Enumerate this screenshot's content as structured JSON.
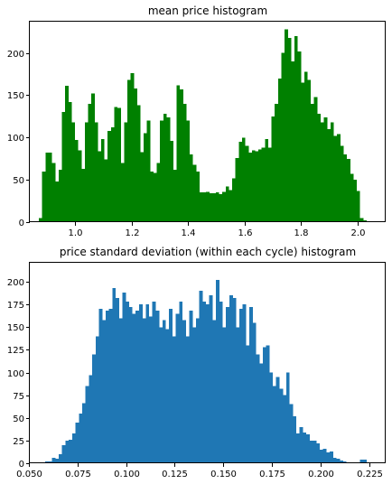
{
  "chart_data": [
    {
      "type": "bar",
      "title": "mean price histogram",
      "color": "#008000",
      "xlim": [
        0.84,
        2.1
      ],
      "ylim": [
        0,
        237
      ],
      "xticks": [
        1.0,
        1.2,
        1.4,
        1.6,
        1.8,
        2.0
      ],
      "xtick_labels": [
        "1.0",
        "1.2",
        "1.4",
        "1.6",
        "1.8",
        "2.0"
      ],
      "yticks": [
        0,
        50,
        100,
        150,
        200
      ],
      "ytick_labels": [
        "0",
        "50",
        "100",
        "150",
        "200"
      ],
      "bin_start": 0.872,
      "bin_width": 0.0116,
      "values": [
        5,
        60,
        82,
        82,
        70,
        48,
        62,
        130,
        161,
        142,
        118,
        97,
        85,
        63,
        118,
        140,
        152,
        118,
        84,
        98,
        74,
        108,
        112,
        136,
        135,
        70,
        118,
        168,
        176,
        158,
        138,
        83,
        105,
        120,
        60,
        58,
        70,
        120,
        128,
        124,
        96,
        62,
        162,
        157,
        140,
        120,
        80,
        68,
        60,
        35,
        35,
        36,
        34,
        34,
        35,
        33,
        36,
        42,
        38,
        52,
        76,
        95,
        100,
        90,
        82,
        85,
        84,
        86,
        88,
        98,
        88,
        125,
        140,
        170,
        200,
        228,
        218,
        190,
        220,
        202,
        165,
        178,
        168,
        140,
        148,
        128,
        118,
        124,
        110,
        118,
        102,
        104,
        90,
        80,
        75,
        57,
        50,
        37,
        5,
        2
      ]
    },
    {
      "type": "bar",
      "title": "price standard deviation (within each cycle) histogram",
      "color": "#1f77b4",
      "xlim": [
        0.0505,
        0.2335
      ],
      "ylim": [
        0,
        221
      ],
      "xticks": [
        0.05,
        0.075,
        0.1,
        0.125,
        0.15,
        0.175,
        0.2,
        0.225
      ],
      "xtick_labels": [
        "0.050",
        "0.075",
        "0.100",
        "0.125",
        "0.150",
        "0.175",
        "0.200",
        "0.225"
      ],
      "yticks": [
        0,
        25,
        50,
        75,
        100,
        125,
        150,
        175,
        200
      ],
      "ytick_labels": [
        "0",
        "25",
        "50",
        "75",
        "100",
        "125",
        "150",
        "175",
        "200"
      ],
      "bin_start": 0.0585,
      "bin_width": 0.00172,
      "values": [
        2,
        2,
        6,
        5,
        10,
        20,
        25,
        26,
        33,
        45,
        55,
        66,
        85,
        97,
        120,
        140,
        170,
        158,
        168,
        170,
        193,
        182,
        160,
        188,
        178,
        172,
        165,
        168,
        175,
        160,
        175,
        162,
        178,
        168,
        150,
        158,
        148,
        170,
        140,
        165,
        178,
        158,
        140,
        168,
        150,
        160,
        190,
        178,
        175,
        185,
        158,
        202,
        178,
        150,
        172,
        185,
        182,
        150,
        170,
        175,
        130,
        172,
        155,
        120,
        110,
        128,
        130,
        100,
        85,
        95,
        82,
        75,
        100,
        65,
        52,
        33,
        40,
        34,
        32,
        25,
        25,
        22,
        15,
        16,
        12,
        13,
        6,
        5,
        3,
        2,
        1,
        1,
        1,
        1,
        4,
        4
      ]
    }
  ]
}
